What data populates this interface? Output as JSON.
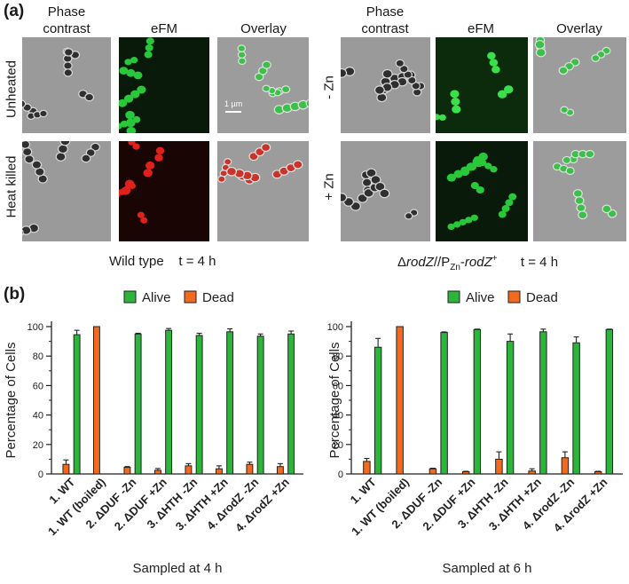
{
  "panel_a": {
    "letter": "(a)",
    "left": {
      "columns": [
        "Phase\ncontrast",
        "eFM",
        "Overlay"
      ],
      "rows": [
        "Unheated",
        "Heat killed"
      ],
      "scale_bar": "1 µm",
      "caption": "Wild type    t = 4 h"
    },
    "right": {
      "columns": [
        "Phase\ncontrast",
        "eFM",
        "Overlay"
      ],
      "rows": [
        "- Zn",
        "+ Zn"
      ],
      "caption_prefix": "Δ",
      "caption_gene": "rodZ",
      "caption_mid": "//P",
      "caption_sub": "Zn",
      "caption_dash": "-",
      "caption_gene2": "rodZ",
      "caption_sup": "+",
      "caption_time": "t = 4 h"
    }
  },
  "panel_b": {
    "letter": "(b)",
    "legend": [
      "Alive",
      "Dead"
    ],
    "colors": {
      "alive": "#2bb53a",
      "dead": "#f26a1e"
    }
  },
  "chart_data": [
    {
      "type": "bar",
      "ylabel": "Percentage of Cells",
      "xlabel": "Sampled at 4 h",
      "ylim": [
        0,
        100
      ],
      "yticks": [
        0,
        20,
        40,
        60,
        80,
        100
      ],
      "categories": [
        "1. WT",
        "1. WT (boiled)",
        "2. ΔDUF -Zn",
        "2. ΔDUF +Zn",
        "3. ΔHTH -Zn",
        "3. ΔHTH +Zn",
        "4. ΔrodZ -Zn",
        "4. ΔrodZ +Zn"
      ],
      "series": [
        {
          "name": "Alive",
          "values": [
            94.5,
            0,
            95,
            97.5,
            94,
            96.5,
            93.5,
            95
          ],
          "errors": [
            3,
            0,
            0.5,
            1.2,
            1.5,
            2,
            1.5,
            2
          ]
        },
        {
          "name": "Dead",
          "values": [
            6.5,
            100,
            4.5,
            2.5,
            5.5,
            3.5,
            6.5,
            5
          ],
          "errors": [
            3,
            0,
            0.5,
            1.2,
            1.5,
            2,
            1.5,
            2
          ]
        }
      ]
    },
    {
      "type": "bar",
      "ylabel": "Percentage of Cells",
      "xlabel": "Sampled at 6 h",
      "ylim": [
        0,
        100
      ],
      "yticks": [
        0,
        20,
        40,
        60,
        80,
        100
      ],
      "categories": [
        "1. WT",
        "1. WT (boiled)",
        "2. ΔDUF -Zn",
        "2. ΔDUF +Zn",
        "3. ΔHTH -Zn",
        "3. ΔHTH +Zn",
        "4. ΔrodZ -Zn",
        "4. ΔrodZ +Zn"
      ],
      "series": [
        {
          "name": "Alive",
          "values": [
            86,
            0,
            96,
            98,
            90,
            96.5,
            89,
            98
          ],
          "errors": [
            6,
            0,
            0.4,
            0.3,
            5,
            1.8,
            4,
            0.3
          ]
        },
        {
          "name": "Dead",
          "values": [
            8.5,
            100,
            3.5,
            1.5,
            10,
            2,
            11,
            1.5
          ],
          "errors": [
            2,
            0,
            0.4,
            0.3,
            5,
            1.5,
            4,
            0.3
          ]
        }
      ]
    }
  ]
}
